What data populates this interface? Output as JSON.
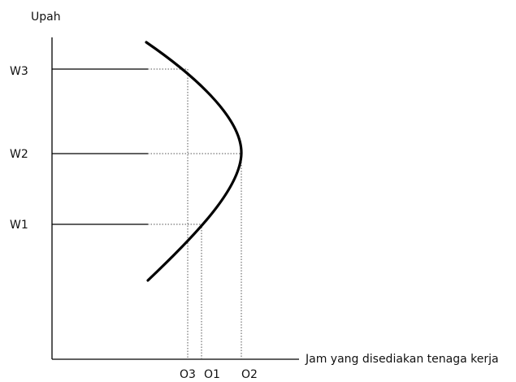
{
  "diagram": {
    "y_axis_label": "Upah",
    "x_axis_label": "Jam yang disediakan tenaga kerja",
    "wage_levels": [
      "W3",
      "W2",
      "W1"
    ],
    "hour_levels": [
      "O3",
      "O1",
      "O2"
    ],
    "colors": {
      "axis": "#000000",
      "curve": "#000000",
      "guide": "#000000",
      "dotted_guide": "#555555"
    }
  }
}
